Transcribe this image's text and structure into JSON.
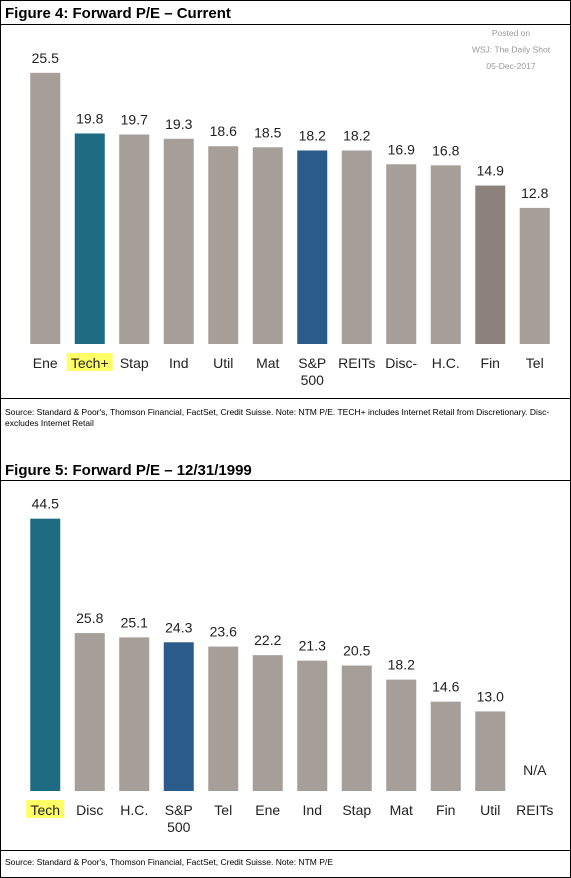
{
  "chart_data": [
    {
      "type": "bar",
      "title": "Figure 4: Forward P/E – Current",
      "annotation": [
        "Posted on",
        "WSJ: The Daily Shot",
        "05-Dec-2017"
      ],
      "categories": [
        "Ene",
        "Tech+",
        "Stap",
        "Ind",
        "Util",
        "Mat",
        "S&P 500",
        "REITs",
        "Disc-",
        "H.C.",
        "Fin",
        "Tel"
      ],
      "values": [
        25.5,
        19.8,
        19.7,
        19.3,
        18.6,
        18.5,
        18.2,
        18.2,
        16.9,
        16.8,
        14.9,
        12.8
      ],
      "colors": [
        "#a69e98",
        "#1f6b81",
        "#a69e98",
        "#a69e98",
        "#a69e98",
        "#a69e98",
        "#2b5b8b",
        "#a69e98",
        "#a69e98",
        "#a69e98",
        "#8c827b",
        "#a69e98"
      ],
      "highlighted_category": "Tech+",
      "highlight_color": "#ffff66",
      "ylim": [
        0,
        30
      ],
      "source": "Source: Standard & Poor's, Thomson Financial, FactSet, Credit Suisse. Note: NTM P/E. TECH+ includes Internet Retail from Discretionary. Disc- excludes Internet Retail"
    },
    {
      "type": "bar",
      "title": "Figure 5: Forward P/E – 12/31/1999",
      "categories": [
        "Tech",
        "Disc",
        "H.C.",
        "S&P 500",
        "Tel",
        "Ene",
        "Ind",
        "Stap",
        "Mat",
        "Fin",
        "Util",
        "REITs"
      ],
      "values": [
        44.5,
        25.8,
        25.1,
        24.3,
        23.6,
        22.2,
        21.3,
        20.5,
        18.2,
        14.6,
        13.0,
        null
      ],
      "value_labels": [
        "44.5",
        "25.8",
        "25.1",
        "24.3",
        "23.6",
        "22.2",
        "21.3",
        "20.5",
        "18.2",
        "14.6",
        "13.0",
        "N/A"
      ],
      "colors": [
        "#1f6b81",
        "#a69e98",
        "#a69e98",
        "#2b5b8b",
        "#a69e98",
        "#a69e98",
        "#a69e98",
        "#a69e98",
        "#a69e98",
        "#a69e98",
        "#a69e98",
        "#a69e98"
      ],
      "highlighted_category": "Tech",
      "highlight_color": "#ffff66",
      "ylim": [
        0,
        50
      ],
      "source": "Source: Standard & Poor's, Thomson Financial, FactSet, Credit Suisse. Note: NTM P/E"
    }
  ]
}
